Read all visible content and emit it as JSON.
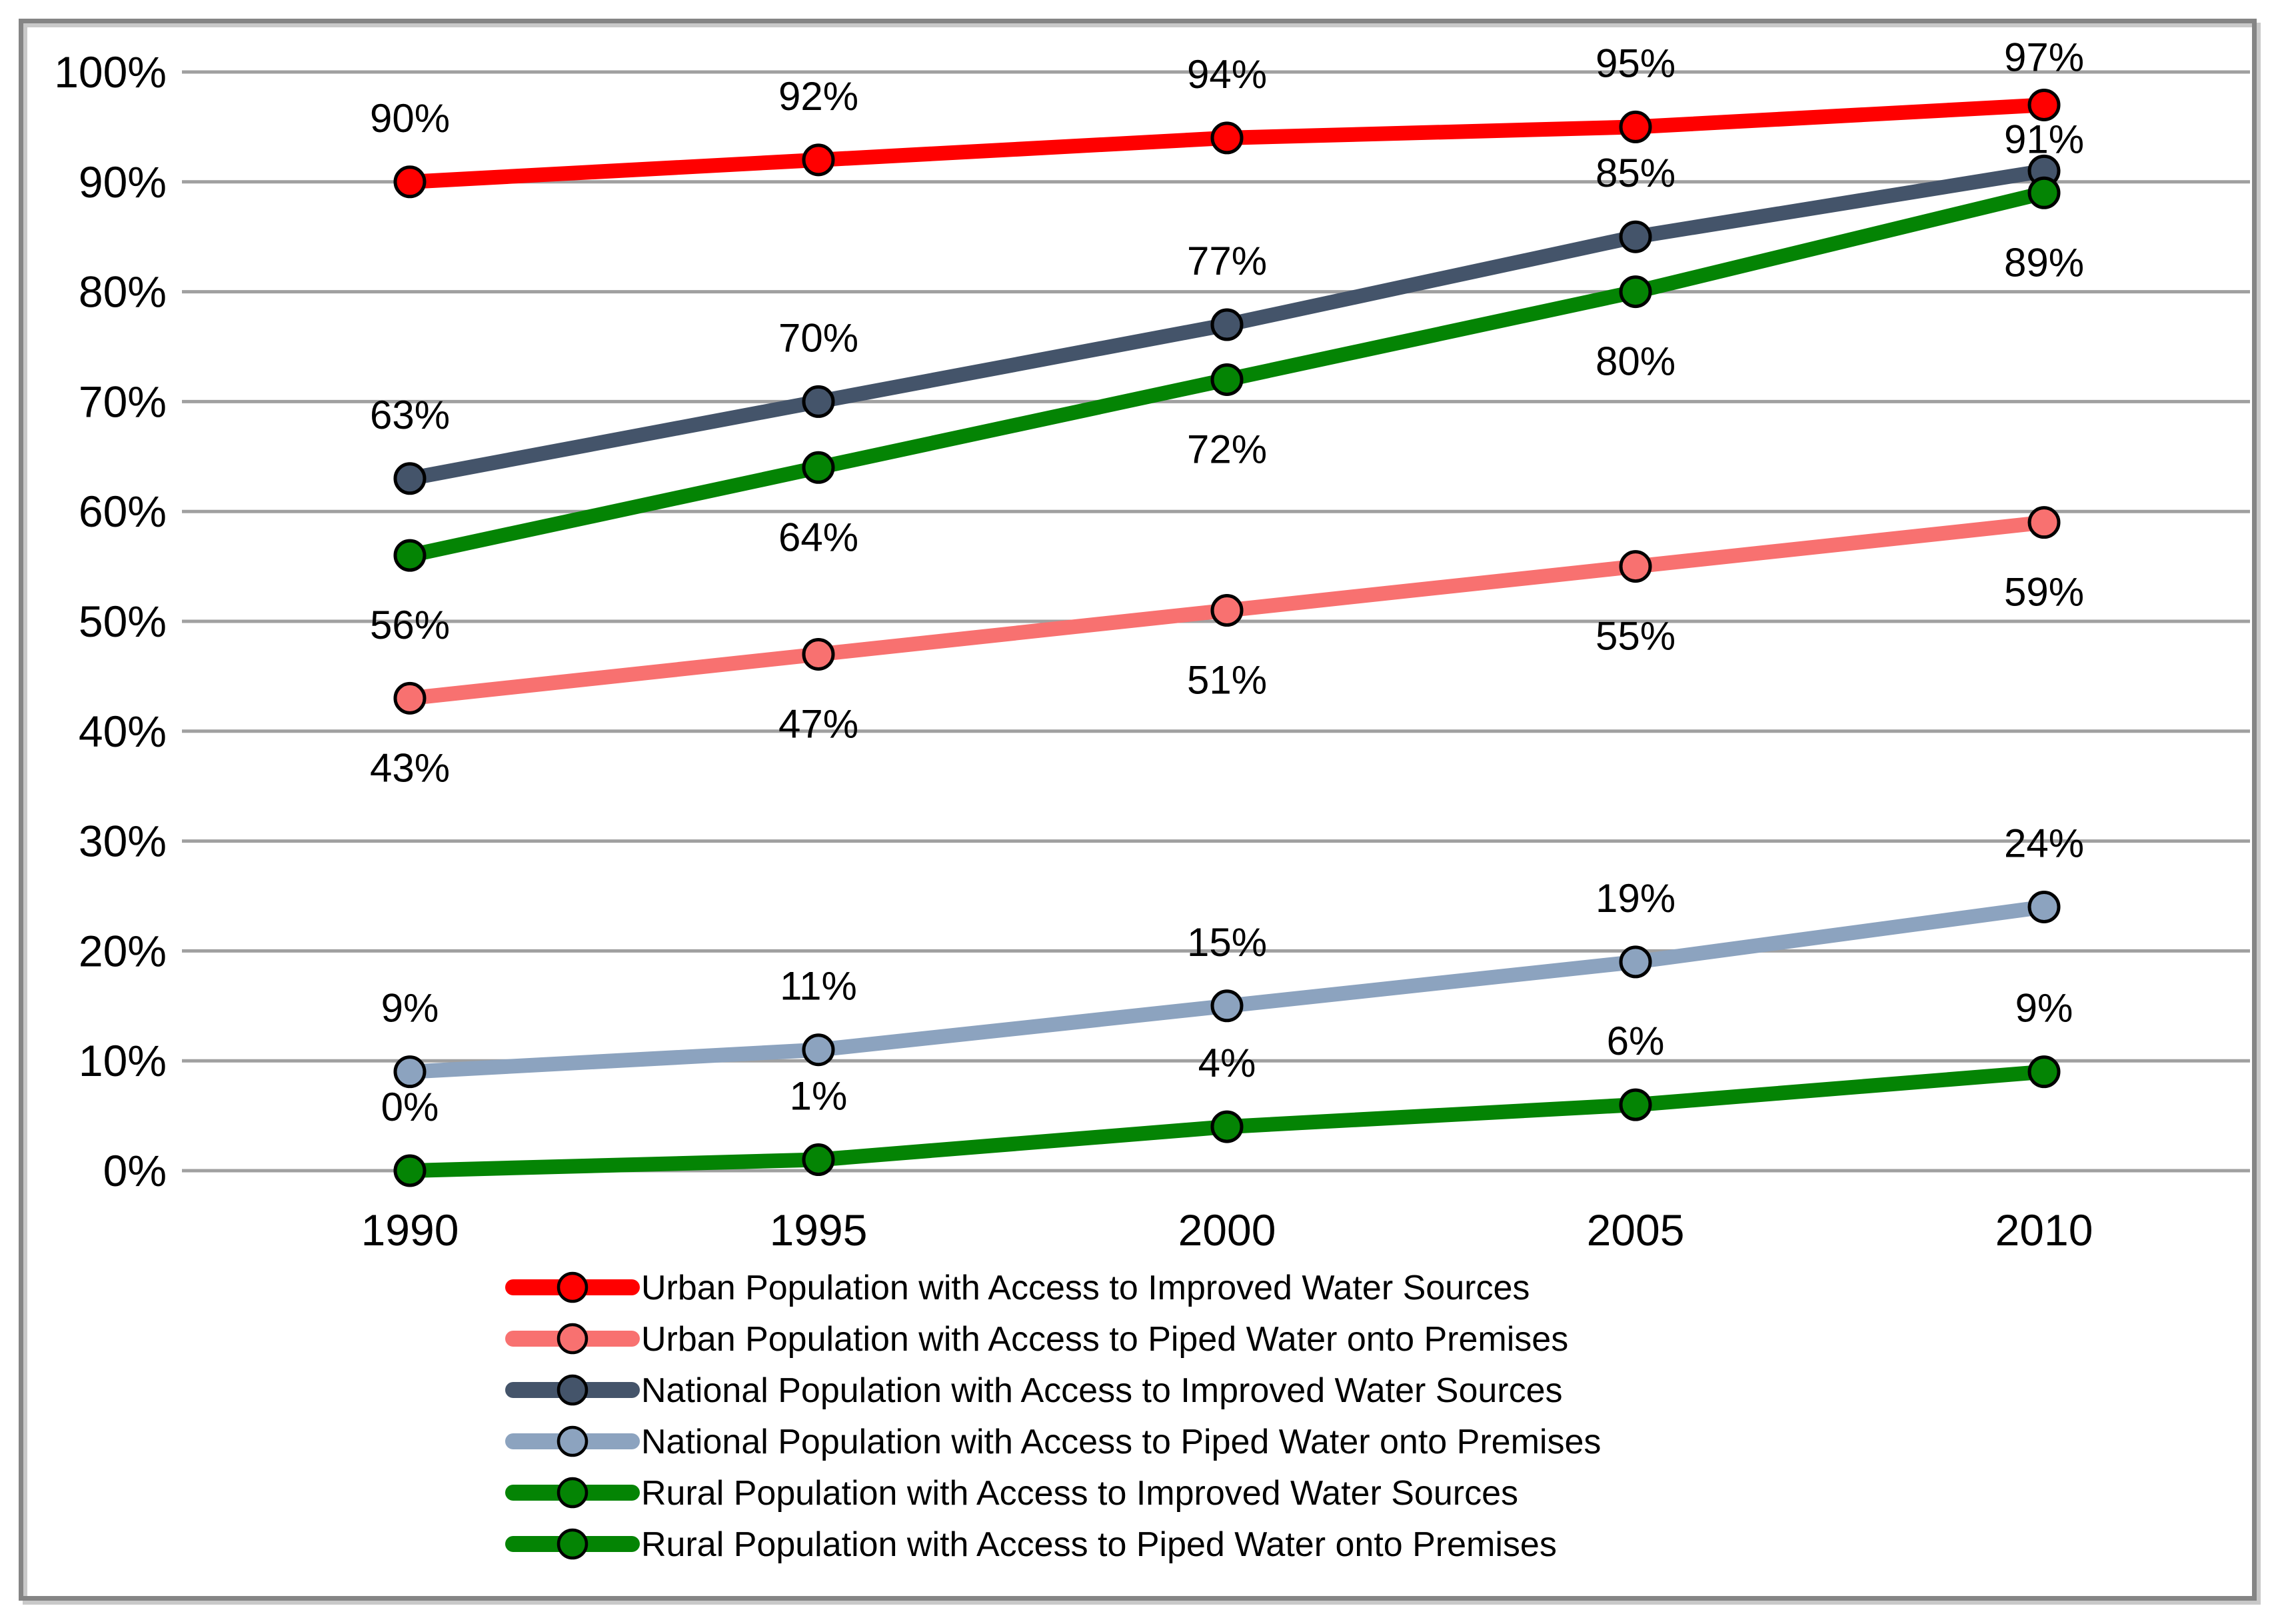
{
  "chart_data": {
    "type": "line",
    "title": "",
    "xlabel": "",
    "ylabel": "",
    "x": [
      1990,
      1995,
      2000,
      2005,
      2010
    ],
    "x_tick_labels": [
      "1990",
      "1995",
      "2000",
      "2005",
      "2010"
    ],
    "ylim": [
      0,
      100
    ],
    "ytick_step": 10,
    "y_tick_labels": [
      "0%",
      "10%",
      "20%",
      "30%",
      "40%",
      "50%",
      "60%",
      "70%",
      "80%",
      "90%",
      "100%"
    ],
    "grid": true,
    "legend_position": "bottom",
    "data_label_format": "percent",
    "series": [
      {
        "name": "Urban Population with Access to Improved Water Sources",
        "color": "#ff0000",
        "values": [
          90,
          92,
          94,
          95,
          97
        ],
        "label_position": "above",
        "label_dy_overrides": {
          "4": -72
        }
      },
      {
        "name": "Urban Population with Access to Piped Water onto Premises",
        "color": "#f87170",
        "values": [
          43,
          47,
          51,
          55,
          59
        ],
        "label_position": "below",
        "label_dy_overrides": {}
      },
      {
        "name": "National Population with Access to Improved Water Sources",
        "color": "#44546a",
        "values": [
          63,
          70,
          77,
          85,
          91
        ],
        "label_position": "above",
        "label_dy_overrides": {
          "4": -48
        }
      },
      {
        "name": "National Population with Access to Piped Water onto Premises",
        "color": "#8ca3bf",
        "values": [
          9,
          11,
          15,
          19,
          24
        ],
        "label_position": "above",
        "label_dy_overrides": {}
      },
      {
        "name": "Rural Population with Access to Improved Water Sources",
        "color": "#048404",
        "values": [
          56,
          64,
          72,
          80,
          89
        ],
        "label_position": "below",
        "label_dy_overrides": {}
      },
      {
        "name": "Rural Population with Access to Piped Water onto Premises",
        "color": "#048404",
        "values": [
          0,
          1,
          4,
          6,
          9
        ],
        "label_position": "above",
        "label_dy_overrides": {}
      }
    ]
  },
  "styles": {
    "background": "#ffffff",
    "frame_border": "#858585",
    "frame_shadow": "#c9c9c9",
    "gridline": "#a0a0a0",
    "marker_outline": "#000000",
    "text_color": "#000000"
  }
}
